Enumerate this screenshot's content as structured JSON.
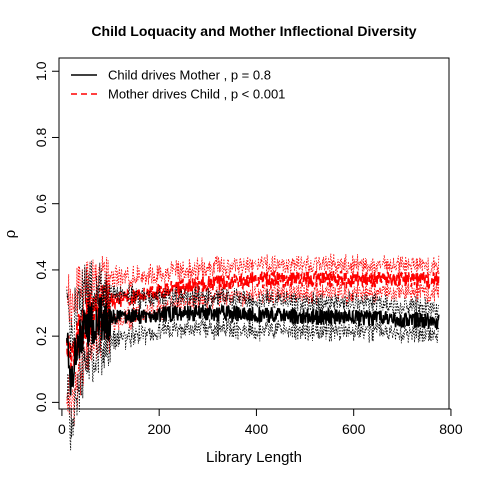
{
  "chart_data": {
    "type": "line",
    "title": "Child Loquacity and Mother Inflectional Diversity",
    "xlabel": "Library Length",
    "ylabel": "ρ",
    "xlim": [
      -6,
      796
    ],
    "ylim": [
      -0.02,
      1.04
    ],
    "x_ticks": [
      0,
      200,
      400,
      600,
      800
    ],
    "y_ticks": [
      0.0,
      0.2,
      0.4,
      0.6,
      0.8,
      1.0
    ],
    "x_tick_labels": [
      "0",
      "200",
      "400",
      "600",
      "800"
    ],
    "y_tick_labels": [
      "0.0",
      "0.2",
      "0.4",
      "0.6",
      "0.8",
      "1.0"
    ],
    "grid": false,
    "legend_position": "top-left",
    "x_range": [
      10,
      775
    ],
    "series": [
      {
        "name": "Child drives Mother , p = 0.8",
        "color": "#000000",
        "style": "solid",
        "band_style": "dotted",
        "points": [
          [
            10,
            0.23
          ],
          [
            15,
            0.12
          ],
          [
            20,
            0.07
          ],
          [
            25,
            0.14
          ],
          [
            30,
            0.18
          ],
          [
            40,
            0.21
          ],
          [
            50,
            0.23
          ],
          [
            60,
            0.24
          ],
          [
            80,
            0.25
          ],
          [
            100,
            0.255
          ],
          [
            150,
            0.26
          ],
          [
            200,
            0.265
          ],
          [
            250,
            0.27
          ],
          [
            300,
            0.27
          ],
          [
            400,
            0.265
          ],
          [
            500,
            0.26
          ],
          [
            600,
            0.255
          ],
          [
            700,
            0.25
          ],
          [
            775,
            0.245
          ]
        ],
        "band_width": [
          [
            10,
            0.15
          ],
          [
            30,
            0.13
          ],
          [
            60,
            0.1
          ],
          [
            100,
            0.07
          ],
          [
            200,
            0.05
          ],
          [
            400,
            0.045
          ],
          [
            775,
            0.04
          ]
        ]
      },
      {
        "name": "Mother drives Child , p < 0.001",
        "color": "#ff0000",
        "style": "dashed",
        "band_style": "dotted",
        "points": [
          [
            10,
            0.22
          ],
          [
            15,
            0.13
          ],
          [
            20,
            0.1
          ],
          [
            25,
            0.16
          ],
          [
            30,
            0.2
          ],
          [
            40,
            0.23
          ],
          [
            50,
            0.25
          ],
          [
            60,
            0.27
          ],
          [
            80,
            0.29
          ],
          [
            100,
            0.305
          ],
          [
            150,
            0.32
          ],
          [
            200,
            0.335
          ],
          [
            250,
            0.35
          ],
          [
            300,
            0.36
          ],
          [
            400,
            0.37
          ],
          [
            500,
            0.372
          ],
          [
            600,
            0.372
          ],
          [
            700,
            0.37
          ],
          [
            775,
            0.368
          ]
        ],
        "band_width": [
          [
            10,
            0.15
          ],
          [
            30,
            0.13
          ],
          [
            60,
            0.1
          ],
          [
            100,
            0.07
          ],
          [
            200,
            0.05
          ],
          [
            400,
            0.045
          ],
          [
            775,
            0.04
          ]
        ]
      }
    ]
  }
}
